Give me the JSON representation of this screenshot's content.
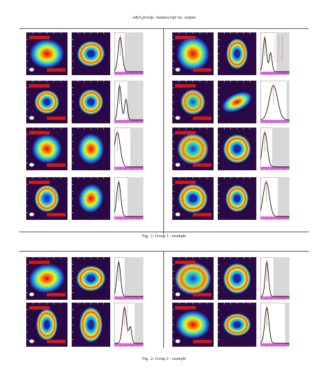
{
  "header": "A&A proofs: manuscript no. output",
  "captions": {
    "fig1": "Fig. .1: Group 1 - example",
    "fig2": "Fig. .2: Group 2 - example"
  },
  "panel_labels": {
    "ra_axis": "ΔRA [\"]",
    "dec_axis": "ΔDec [\"]",
    "radius_axis": "Radius [au]",
    "intensity_axis": "Normalized intensity"
  },
  "colors": {
    "bg_dark": "#2a0845",
    "profile_line": "#111111",
    "profile_red": "#d01818",
    "shade": "#d8d8d8",
    "magenta_band": "#e040e0",
    "name_box": "#d01818",
    "name_text": "#ffffff"
  }
}
